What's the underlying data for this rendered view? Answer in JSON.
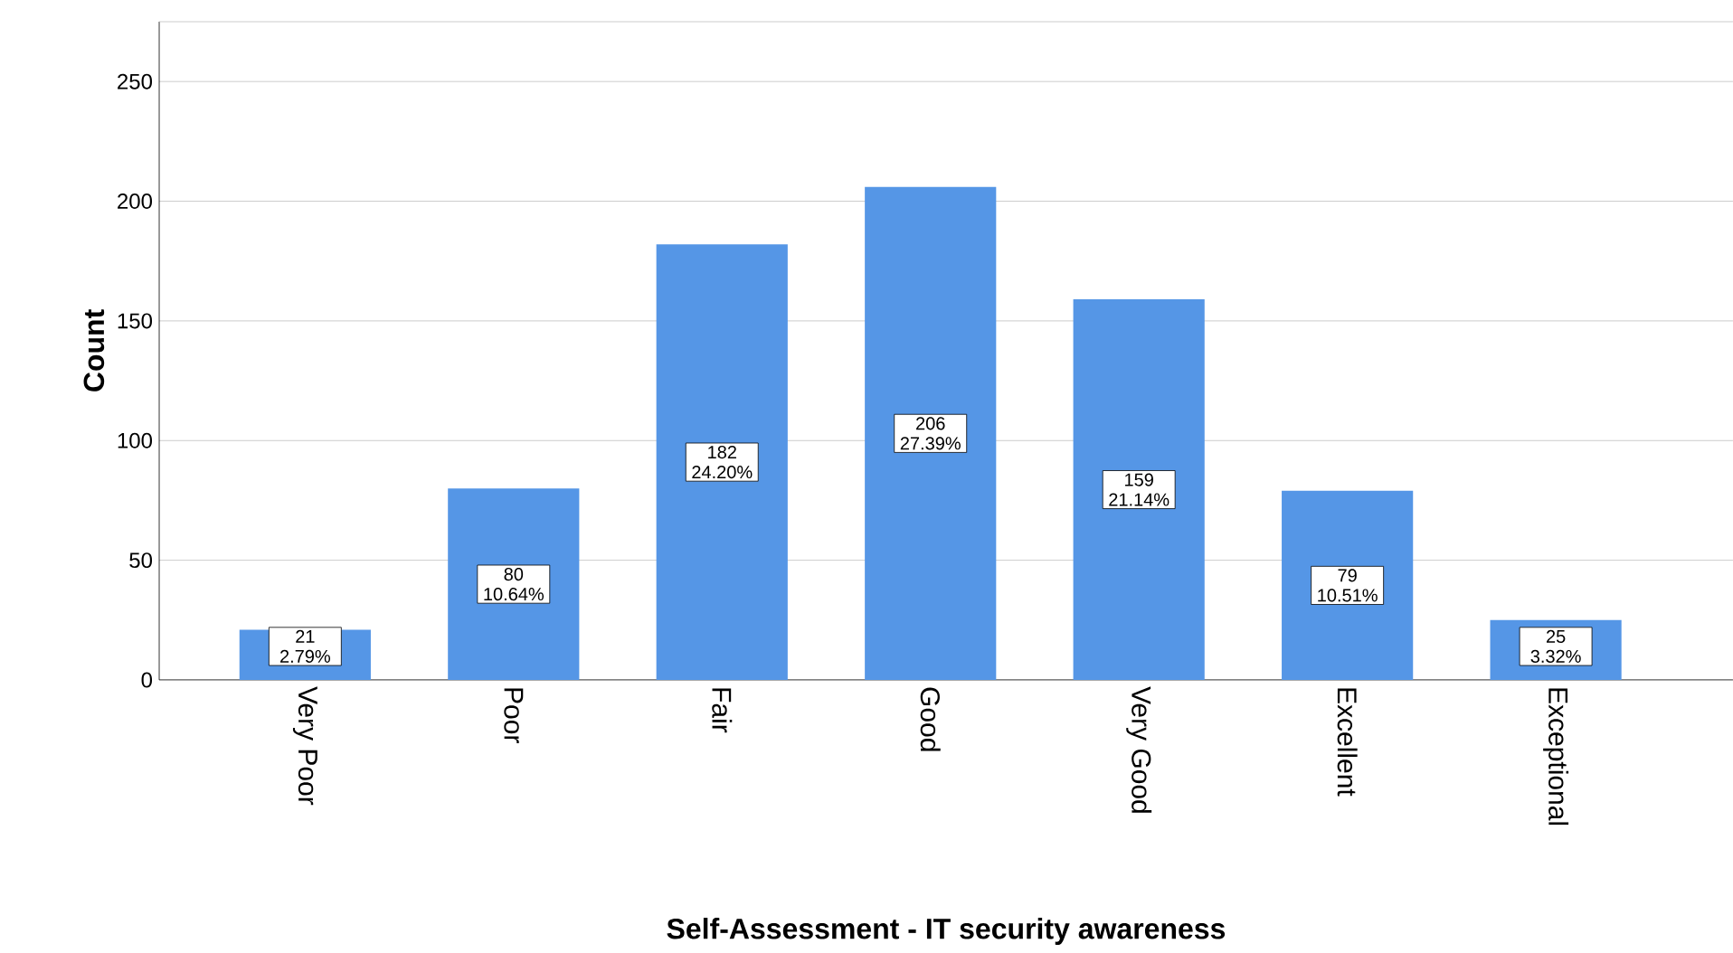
{
  "chart_data": {
    "type": "bar",
    "xlabel": "Self-Assessment - IT security awareness",
    "ylabel": "Count",
    "categories": [
      "Very Poor",
      "Poor",
      "Fair",
      "Good",
      "Very Good",
      "Excellent",
      "Exceptional"
    ],
    "values": [
      21,
      80,
      182,
      206,
      159,
      79,
      25
    ],
    "value_labels": [
      "21 2.79%",
      "80 10.64%",
      "182 24.20%",
      "206 27.39%",
      "159 21.14%",
      "79 10.51%",
      "25 3.32%"
    ],
    "color": "#5596e6",
    "ylim": [
      0,
      275
    ],
    "yticks": [
      0,
      50,
      100,
      150,
      200,
      250
    ],
    "grid": "y"
  }
}
